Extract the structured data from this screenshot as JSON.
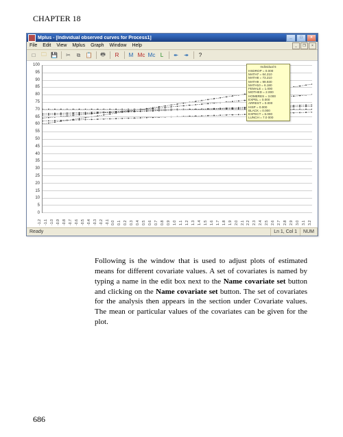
{
  "chapter_title": "CHAPTER 18",
  "page_number": "686",
  "window": {
    "title": "Mplus - [Individual observed curves for Process1]",
    "menu": [
      "File",
      "Edit",
      "View",
      "Mplus",
      "Graph",
      "Window",
      "Help"
    ],
    "win_buttons": {
      "min": "_",
      "max": "□",
      "close": "×"
    },
    "mdi_buttons": {
      "min": "_",
      "restore": "❐",
      "close": "×"
    },
    "toolbar_icons": [
      {
        "name": "new-icon",
        "glyph": "□",
        "color": "#5b5b5b"
      },
      {
        "name": "open-icon",
        "glyph": "🗀",
        "color": "#c9a13a"
      },
      {
        "name": "save-icon",
        "glyph": "💾",
        "color": "#2b4e86"
      },
      {
        "name": "sep"
      },
      {
        "name": "cut-icon",
        "glyph": "✂",
        "color": "#5b5b5b"
      },
      {
        "name": "copy-icon",
        "glyph": "⧉",
        "color": "#5b5b5b"
      },
      {
        "name": "paste-icon",
        "glyph": "📋",
        "color": "#8a5f2c"
      },
      {
        "name": "sep"
      },
      {
        "name": "print-icon",
        "glyph": "🖶",
        "color": "#5b5b5b"
      },
      {
        "name": "sep"
      },
      {
        "name": "run-icon",
        "glyph": "R",
        "color": "#b22222"
      },
      {
        "name": "sep"
      },
      {
        "name": "zoom-in-icon",
        "glyph": "M",
        "color": "#1e63b0"
      },
      {
        "name": "zoom-out-icon",
        "glyph": "Mc",
        "color": "#b22222"
      },
      {
        "name": "fit-icon",
        "glyph": "Mc",
        "color": "#1e63b0"
      },
      {
        "name": "grid-icon",
        "glyph": "L",
        "color": "#1e8a1e"
      },
      {
        "name": "sep"
      },
      {
        "name": "left-icon",
        "glyph": "↞",
        "color": "#1e63b0"
      },
      {
        "name": "right-icon",
        "glyph": "↠",
        "color": "#1e63b0"
      },
      {
        "name": "sep"
      },
      {
        "name": "help-icon",
        "glyph": "?",
        "color": "#111"
      }
    ],
    "chart": {
      "ymin": 0,
      "ymax": 100,
      "ystep": 5,
      "x_values": [
        -1.2,
        -1.1,
        -1.0,
        -0.9,
        -0.8,
        -0.7,
        -0.6,
        -0.5,
        -0.4,
        -0.3,
        -0.2,
        -0.1,
        0.0,
        0.1,
        0.2,
        0.3,
        0.4,
        0.5,
        0.6,
        0.7,
        0.8,
        0.9,
        1.0,
        1.1,
        1.2,
        1.3,
        1.4,
        1.5,
        1.6,
        1.7,
        1.8,
        1.9,
        2.0,
        2.1,
        2.2,
        2.3,
        2.4,
        2.5,
        2.6,
        2.7,
        2.8,
        2.9,
        3.0,
        3.1,
        3.2
      ],
      "series": [
        {
          "start": 60,
          "end": 87
        },
        {
          "start": 64,
          "end": 80
        },
        {
          "start": 66,
          "end": 73
        },
        {
          "start": 67,
          "end": 72
        },
        {
          "start": 70,
          "end": 70
        },
        {
          "start": 62,
          "end": 68
        }
      ],
      "curve_color": "#3a3a3a",
      "grid_color": "#d0d0d0",
      "axis_color": "#888888",
      "background": "#ffffff"
    },
    "tooltip": {
      "title": "Individual 5",
      "rows": [
        "HSDROP = 0.000",
        "MATH7 = 64.210",
        "MATH8 = 73.210",
        "MATH9 = 99.930",
        "MATH10 = 6.180",
        "FEMALE = 1.000",
        "MOTHED = 2.000",
        "HOMERES = 3.000",
        "EXPEL = 0.000",
        "ARREST = 0.000",
        "HISP = 0.000",
        "BLACK = 0.000",
        "EXPECT = 6.000",
        "LUNCH = 7.0 000"
      ],
      "bg": "#ffffc8",
      "border": "#8a8a50"
    },
    "status": {
      "ready": "Ready",
      "pos": "Ln 1, Col 1",
      "num": "NUM"
    }
  },
  "paragraph": {
    "p1a": "Following is the window that is used to adjust plots of estimated means for different covariate values.  A set of covariates is named by typing a name in the edit box next to the ",
    "b1": "Name covariate set",
    "p1b": " button and clicking on the ",
    "b2": "Name covariate set",
    "p1c": " button.  The set of covariates for the analysis then appears in the section under Covariate values.  The mean or particular values of the covariates can be given for the plot."
  }
}
